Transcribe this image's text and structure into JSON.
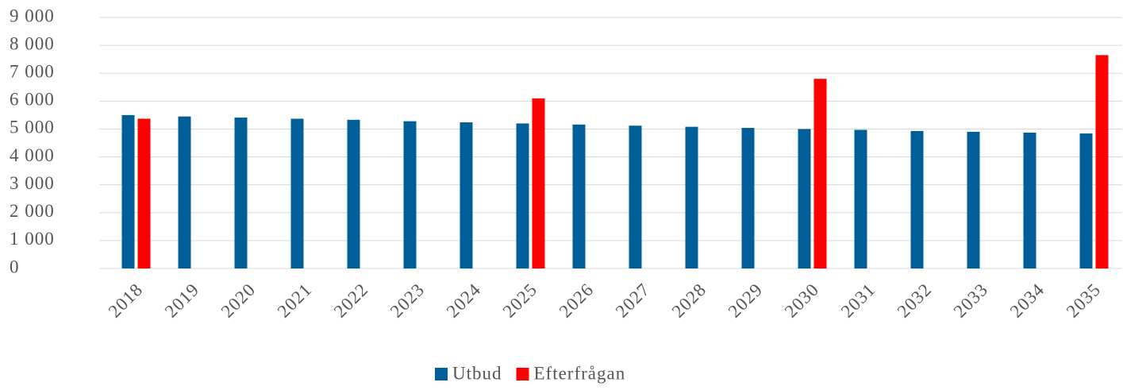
{
  "chart_data": {
    "type": "bar",
    "categories": [
      "2018",
      "2019",
      "2020",
      "2021",
      "2022",
      "2023",
      "2024",
      "2025",
      "2026",
      "2027",
      "2028",
      "2029",
      "2030",
      "2031",
      "2032",
      "2033",
      "2034",
      "2035"
    ],
    "series": [
      {
        "name": "Utbud",
        "color": "#005f99",
        "values": [
          5500,
          5450,
          5410,
          5370,
          5330,
          5280,
          5240,
          5200,
          5160,
          5120,
          5080,
          5040,
          5000,
          4970,
          4930,
          4900,
          4870,
          4840
        ]
      },
      {
        "name": "Efterfrågan",
        "color": "#ff0000",
        "values": [
          5370,
          null,
          null,
          null,
          null,
          null,
          null,
          6100,
          null,
          null,
          null,
          null,
          6800,
          null,
          null,
          null,
          null,
          7650
        ]
      }
    ],
    "ylim": [
      0,
      9000
    ],
    "yticks": [
      0,
      {
        "value": 1000,
        "label": "1 000"
      },
      {
        "value": 2000,
        "label": "2 000"
      },
      {
        "value": 3000,
        "label": "3 000"
      },
      {
        "value": 4000,
        "label": "4 000"
      },
      {
        "value": 5000,
        "label": "5 000"
      },
      {
        "value": 6000,
        "label": "6 000"
      },
      {
        "value": 7000,
        "label": "7 000"
      },
      {
        "value": 8000,
        "label": "8 000"
      },
      {
        "value": 9000,
        "label": "9 000"
      }
    ],
    "grid": true,
    "legend": "bottom"
  }
}
